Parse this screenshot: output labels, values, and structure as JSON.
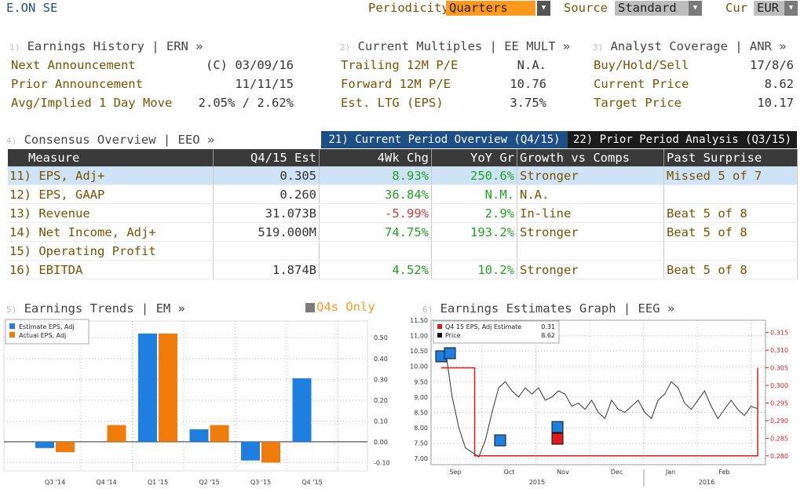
{
  "header": {
    "ticker": "E.ON SE",
    "periodicity_label": "Periodicity",
    "periodicity_value": "Quarters",
    "source_label": "Source",
    "source_value": "Standard",
    "currency_label": "Cur",
    "currency_value": "EUR"
  },
  "earnings_history": {
    "num": "1)",
    "title": "Earnings History | ERN »",
    "rows": [
      {
        "label": "Next Announcement",
        "value": "(C) 03/09/16"
      },
      {
        "label": "Prior Announcement",
        "value": "11/11/15"
      },
      {
        "label": "Avg/Implied 1 Day Move",
        "value": "2.05% / 2.62%"
      }
    ]
  },
  "current_multiples": {
    "num": "2)",
    "title": "Current Multiples | EE MULT »",
    "rows": [
      {
        "label": "Trailing 12M P/E",
        "value": "N.A."
      },
      {
        "label": "Forward 12M P/E",
        "value": "10.76"
      },
      {
        "label": "Est. LTG (EPS)",
        "value": "3.75%"
      }
    ]
  },
  "analyst_coverage": {
    "num": "3)",
    "title": "Analyst Coverage | ANR »",
    "rows": [
      {
        "label": "Buy/Hold/Sell",
        "value": "17/8/6"
      },
      {
        "label": "Current Price",
        "value": "8.62"
      },
      {
        "label": "Target Price",
        "value": "10.17"
      }
    ]
  },
  "consensus": {
    "num": "4)",
    "title": "Consensus Overview | EEO »",
    "tab_current": "21) Current Period Overview (Q4/15)",
    "tab_prior": "22) Prior Period Analysis (Q3/15)",
    "columns": [
      "Measure",
      "Q4/15 Est",
      "4Wk Chg",
      "YoY Gr",
      "Growth vs Comps",
      "Past Surprise"
    ],
    "rows": [
      {
        "num": "11)",
        "measure": "EPS, Adj+",
        "est": "0.305",
        "chg": "8.93%",
        "yoy": "250.6%",
        "growth": "Stronger",
        "surprise": "Missed 5 of 7"
      },
      {
        "num": "12)",
        "measure": "EPS, GAAP",
        "est": "0.260",
        "chg": "36.84%",
        "yoy": "N.M.",
        "growth": "N.A.",
        "surprise": ""
      },
      {
        "num": "13)",
        "measure": "Revenue",
        "est": "31.073B",
        "chg": "-5.99%",
        "yoy": "2.9%",
        "growth": "In-line",
        "surprise": "Beat 5 of 8"
      },
      {
        "num": "14)",
        "measure": "Net Income, Adj+",
        "est": "519.000M",
        "chg": "74.75%",
        "yoy": "193.2%",
        "growth": "Stronger",
        "surprise": "Beat 5 of 8"
      },
      {
        "num": "15)",
        "measure": "Operating Profit",
        "est": "",
        "chg": "",
        "yoy": "",
        "growth": "",
        "surprise": ""
      },
      {
        "num": "16)",
        "measure": "EBITDA",
        "est": "1.874B",
        "chg": "4.52%",
        "yoy": "10.2%",
        "growth": "Stronger",
        "surprise": "Beat 5 of 8"
      }
    ]
  },
  "earnings_trends": {
    "num": "5)",
    "title": "Earnings Trends | EM »",
    "toggle_label": "Q4s Only"
  },
  "earnings_graph": {
    "num": "6)",
    "title": "Earnings Estimates Graph | EEG »"
  },
  "colors": {
    "accent": "#ff9a1e",
    "estimate": "#1e7fe0",
    "actual": "#f07a0a",
    "price_line": "#333333",
    "eps_line": "#e01919"
  },
  "chart_data": [
    {
      "type": "bar",
      "categories": [
        "Q3 '14",
        "Q4 '14",
        "Q1 '15",
        "Q2 '15",
        "Q3 '15",
        "Q4 '15"
      ],
      "series": [
        {
          "name": "Estimate EPS, Adj",
          "values": [
            -0.03,
            null,
            0.52,
            0.06,
            -0.09,
            0.305
          ]
        },
        {
          "name": "Actual EPS, Adj",
          "values": [
            -0.05,
            0.08,
            0.52,
            0.08,
            -0.1,
            null
          ]
        }
      ],
      "ylim": [
        -0.14,
        0.58
      ],
      "yticks": [
        "0.50",
        "0.40",
        "0.30",
        "0.20",
        "0.10",
        "0.00",
        "-0.10"
      ],
      "legend": "top-left"
    },
    {
      "type": "line",
      "legend_entries": [
        {
          "name": "Q4 15 EPS, Adj Estimate",
          "value": "0.31"
        },
        {
          "name": "Price",
          "value": "8.62"
        }
      ],
      "x_labels": [
        "Sep",
        "Oct",
        "Nov",
        "Dec",
        "Jan",
        "Feb"
      ],
      "year_labels": [
        "2015",
        "2016"
      ],
      "left_axis": {
        "range": [
          6.8,
          11.5
        ],
        "ticks": [
          "11.50",
          "11.00",
          "10.50",
          "10.00",
          "9.50",
          "9.00",
          "8.50",
          "8.00",
          "7.50",
          "7.00"
        ]
      },
      "right_axis": {
        "range": [
          0.2775,
          0.3185
        ],
        "ticks": [
          "0.315",
          "0.310",
          "0.305",
          "0.300",
          "0.295",
          "0.290",
          "0.285",
          "0.280"
        ]
      },
      "price": [
        10.2,
        10.5,
        9.0,
        8.0,
        7.35,
        7.2,
        7.05,
        7.6,
        8.5,
        9.3,
        9.5,
        9.2,
        9.0,
        9.3,
        9.1,
        9.3,
        8.9,
        9.0,
        9.2,
        9.1,
        8.7,
        8.8,
        8.6,
        8.9,
        8.5,
        8.3,
        8.9,
        8.6,
        8.5,
        8.7,
        8.9,
        8.5,
        8.3,
        8.9,
        9.1,
        9.5,
        9.3,
        8.8,
        8.6,
        8.9,
        9.2,
        8.7,
        8.3,
        8.6,
        8.9,
        8.6,
        8.4,
        8.7,
        8.62
      ],
      "eps_estimate": [
        0.305,
        0.305,
        0.28,
        0.28,
        0.28,
        0.28,
        0.28,
        0.28,
        0.28,
        0.28,
        0.28,
        0.28,
        0.28,
        0.28,
        0.28,
        0.28,
        0.28,
        0.28,
        0.305
      ]
    }
  ]
}
